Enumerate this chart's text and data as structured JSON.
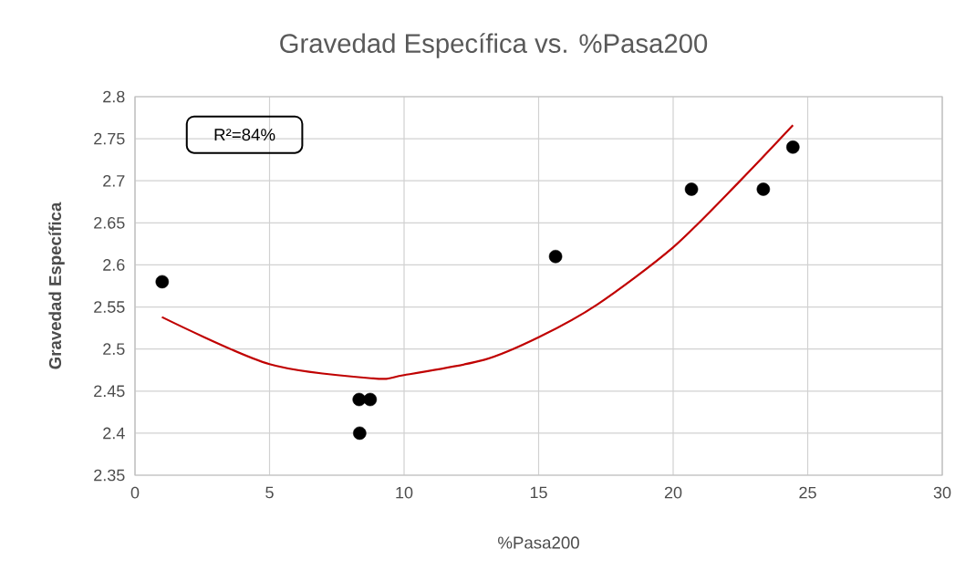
{
  "chart_data": {
    "type": "scatter",
    "title": "Gravedad Específica vs. %Pasa200",
    "xlabel": "%Pasa200",
    "ylabel": "Gravedad Específica",
    "annotations": [
      "R²=84%"
    ],
    "series": [
      {
        "color": "#000000",
        "marker": "circle",
        "x": [
          1.01,
          8.33,
          8.74,
          8.35,
          15.63,
          20.68,
          23.35,
          24.45
        ],
        "values": [
          2.58,
          2.44,
          2.44,
          2.4,
          2.61,
          2.69,
          2.69,
          2.74
        ]
      },
      {
        "type": "line",
        "color": "#c00000",
        "marker": "none",
        "line_style": "solid",
        "x": [
          1.0,
          5,
          8.86,
          10,
          12.96,
          15,
          17.18,
          20,
          22.46,
          24.45
        ],
        "values": [
          2.538,
          2.482,
          2.465,
          2.469,
          2.487,
          2.514,
          2.553,
          2.621,
          2.699,
          2.766
        ]
      }
    ],
    "xlim": [
      0,
      30
    ],
    "ylim": [
      2.35,
      2.8
    ],
    "xticks": [
      0,
      5,
      10,
      15,
      20,
      25,
      30
    ],
    "yticks": [
      2.35,
      2.4,
      2.45,
      2.5,
      2.55,
      2.6,
      2.65,
      2.7,
      2.75,
      2.8
    ],
    "grid": true
  }
}
